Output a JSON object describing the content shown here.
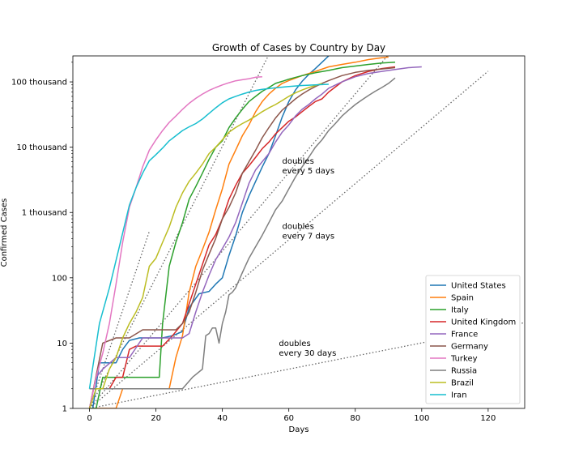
{
  "chart_data": {
    "type": "line",
    "title": "Growth of Cases by Country by Day",
    "xlabel": "Days",
    "ylabel": "Confirmed Cases",
    "xlim": [
      -5,
      131
    ],
    "ylim": [
      1,
      250000
    ],
    "yscale": "log",
    "grid": false,
    "legend_position": "lower-right",
    "x_ticks": [
      {
        "value": 0,
        "label": "0"
      },
      {
        "value": 20,
        "label": "20"
      },
      {
        "value": 40,
        "label": "40"
      },
      {
        "value": 60,
        "label": "60"
      },
      {
        "value": 80,
        "label": "80"
      },
      {
        "value": 100,
        "label": "100"
      },
      {
        "value": 120,
        "label": "120"
      }
    ],
    "y_ticks": [
      {
        "value": 1,
        "label": "1"
      },
      {
        "value": 10,
        "label": "10"
      },
      {
        "value": 100,
        "label": "100"
      },
      {
        "value": 1000,
        "label": "1 thousand"
      },
      {
        "value": 10000,
        "label": "10 thousand"
      },
      {
        "value": 100000,
        "label": "100 thousand"
      }
    ],
    "reference_lines": [
      {
        "days": 2,
        "x": [
          0,
          18
        ],
        "y": [
          1,
          512
        ]
      },
      {
        "days": 3,
        "x": [
          0,
          54
        ],
        "y": [
          1,
          262144
        ]
      },
      {
        "days": 5,
        "x": [
          0,
          90
        ],
        "y": [
          1,
          262144
        ]
      },
      {
        "days": 7,
        "x": [
          0,
          120
        ],
        "y": [
          1,
          146000
        ]
      },
      {
        "days": 30,
        "x": [
          0,
          131
        ],
        "y": [
          1,
          20.6
        ]
      }
    ],
    "annotations": [
      {
        "lines": [
          "doubles",
          "every 5 days"
        ],
        "x": 58,
        "y": 5000
      },
      {
        "lines": [
          "doubles",
          "every 7 days"
        ],
        "x": 58,
        "y": 500
      },
      {
        "lines": [
          "doubles",
          "every 30 days"
        ],
        "x": 57,
        "y": 8
      }
    ],
    "series": [
      {
        "name": "United States",
        "color": "#1f77b4",
        "x": [
          1,
          3,
          5,
          8,
          10,
          12,
          15,
          18,
          22,
          25,
          28,
          30,
          33,
          36,
          38,
          40,
          42,
          44,
          46,
          48,
          50,
          52,
          54,
          56,
          58,
          60,
          62,
          64,
          66,
          68,
          70,
          72
        ],
        "y": [
          1,
          5,
          5,
          5,
          8,
          11,
          12,
          12,
          12,
          13,
          15,
          35,
          57,
          62,
          80,
          100,
          220,
          440,
          1000,
          1800,
          3000,
          5000,
          8000,
          15000,
          29000,
          50000,
          75000,
          102000,
          130000,
          160000,
          200000,
          250000
        ]
      },
      {
        "name": "Spain",
        "color": "#ff7f0e",
        "x": [
          0,
          8,
          10,
          12,
          20,
          24,
          26,
          28,
          30,
          32,
          34,
          36,
          38,
          40,
          42,
          44,
          46,
          48,
          50,
          52,
          54,
          56,
          58,
          60,
          64,
          68,
          72,
          76,
          80,
          84,
          88,
          90
        ],
        "y": [
          1,
          1,
          2,
          2,
          2,
          2,
          6,
          13,
          60,
          150,
          270,
          500,
          1100,
          2300,
          5500,
          9000,
          15000,
          22000,
          35000,
          50000,
          65000,
          80000,
          95000,
          105000,
          125000,
          145000,
          170000,
          185000,
          200000,
          220000,
          235000,
          240000
        ]
      },
      {
        "name": "Italy",
        "color": "#2ca02c",
        "x": [
          0,
          2,
          4,
          6,
          8,
          10,
          14,
          18,
          21,
          22,
          24,
          26,
          28,
          30,
          32,
          34,
          36,
          38,
          40,
          42,
          44,
          46,
          48,
          50,
          52,
          54,
          56,
          58,
          60,
          64,
          68,
          72,
          76,
          80,
          84,
          88,
          92
        ],
        "y": [
          1,
          1,
          3,
          3,
          3,
          3,
          3,
          3,
          3,
          20,
          150,
          350,
          700,
          1600,
          2500,
          4000,
          6500,
          10000,
          12500,
          20000,
          28000,
          38000,
          50000,
          60000,
          72000,
          82000,
          95000,
          102000,
          110000,
          125000,
          138000,
          150000,
          165000,
          175000,
          185000,
          195000,
          200000
        ]
      },
      {
        "name": "United Kingdom",
        "color": "#d62728",
        "x": [
          0,
          6,
          8,
          10,
          12,
          14,
          18,
          22,
          25,
          28,
          30,
          32,
          34,
          36,
          38,
          40,
          42,
          44,
          46,
          48,
          50,
          52,
          54,
          56,
          58,
          60,
          62,
          64,
          66,
          68,
          70,
          72,
          76,
          80,
          84,
          88,
          92
        ],
        "y": [
          2,
          2,
          3,
          3,
          8,
          9,
          9,
          9,
          13,
          20,
          40,
          80,
          160,
          320,
          460,
          800,
          1600,
          2600,
          4000,
          5200,
          7000,
          9500,
          12000,
          16000,
          20000,
          25000,
          29000,
          35000,
          42000,
          50000,
          55000,
          70000,
          100000,
          125000,
          145000,
          160000,
          170000
        ]
      },
      {
        "name": "France",
        "color": "#9467bd",
        "x": [
          0,
          2,
          4,
          8,
          12,
          16,
          20,
          24,
          28,
          30,
          32,
          34,
          36,
          38,
          40,
          42,
          44,
          46,
          48,
          50,
          52,
          54,
          56,
          58,
          60,
          62,
          64,
          66,
          68,
          70,
          72,
          76,
          80,
          84,
          88,
          92,
          96,
          100
        ],
        "y": [
          1,
          3,
          4,
          6,
          6,
          12,
          12,
          12,
          12,
          14,
          30,
          60,
          110,
          190,
          280,
          420,
          700,
          1400,
          2800,
          4500,
          6000,
          8000,
          12000,
          17000,
          22000,
          30000,
          38000,
          45000,
          55000,
          65000,
          80000,
          100000,
          120000,
          135000,
          145000,
          155000,
          165000,
          170000
        ]
      },
      {
        "name": "Germany",
        "color": "#8c564b",
        "x": [
          0,
          4,
          8,
          12,
          16,
          20,
          24,
          26,
          28,
          30,
          32,
          34,
          36,
          38,
          40,
          42,
          44,
          46,
          48,
          50,
          52,
          54,
          56,
          58,
          60,
          62,
          64,
          66,
          68,
          70,
          72,
          76,
          80,
          84,
          88,
          92
        ],
        "y": [
          1,
          10,
          12,
          12,
          16,
          16,
          16,
          16,
          20,
          30,
          60,
          130,
          230,
          400,
          800,
          1200,
          2000,
          4000,
          6000,
          9000,
          14000,
          20000,
          28000,
          37000,
          45000,
          55000,
          65000,
          75000,
          85000,
          95000,
          105000,
          125000,
          140000,
          150000,
          158000,
          165000
        ]
      },
      {
        "name": "Turkey",
        "color": "#e377c2",
        "x": [
          0,
          2,
          4,
          6,
          8,
          10,
          12,
          14,
          16,
          18,
          20,
          22,
          24,
          26,
          28,
          30,
          32,
          34,
          36,
          38,
          40,
          42,
          44,
          46,
          48,
          50,
          52
        ],
        "y": [
          1,
          3,
          7,
          20,
          80,
          350,
          1200,
          2400,
          5000,
          9000,
          13000,
          18000,
          24000,
          30000,
          38000,
          47000,
          56000,
          65000,
          74000,
          82000,
          90000,
          97000,
          104000,
          108000,
          112000,
          118000,
          120000
        ]
      },
      {
        "name": "Russia",
        "color": "#7f7f7f",
        "x": [
          0,
          10,
          20,
          28,
          31,
          34,
          35,
          36,
          37,
          38,
          39,
          40,
          41,
          42,
          43,
          44,
          46,
          48,
          50,
          52,
          54,
          56,
          58,
          60,
          62,
          64,
          66,
          68,
          70,
          72,
          74,
          76,
          78,
          80,
          82,
          84,
          86,
          88,
          90,
          92
        ],
        "y": [
          2,
          2,
          2,
          2,
          3,
          4,
          13,
          14,
          17,
          17,
          10,
          20,
          30,
          55,
          60,
          70,
          120,
          200,
          300,
          450,
          700,
          1100,
          1500,
          2300,
          3500,
          5000,
          7000,
          10000,
          13000,
          18000,
          23000,
          30000,
          37000,
          45000,
          53000,
          62000,
          72000,
          82000,
          95000,
          115000
        ]
      },
      {
        "name": "Brazil",
        "color": "#bcbd22",
        "x": [
          0,
          2,
          4,
          6,
          8,
          10,
          12,
          14,
          16,
          18,
          20,
          22,
          24,
          26,
          28,
          30,
          32,
          34,
          36,
          38,
          40,
          42,
          44,
          46,
          48,
          50,
          52,
          54,
          56,
          58,
          60,
          62,
          64,
          66,
          68,
          70
        ],
        "y": [
          1,
          2,
          2,
          4,
          6,
          12,
          20,
          30,
          50,
          150,
          200,
          350,
          600,
          1200,
          2000,
          3000,
          4000,
          5500,
          8000,
          10000,
          13000,
          17000,
          20000,
          23000,
          26000,
          30000,
          35000,
          40000,
          45000,
          52000,
          60000,
          68000,
          75000,
          82000,
          88000,
          95000
        ]
      },
      {
        "name": "Iran",
        "color": "#17becf",
        "x": [
          0,
          3,
          6,
          9,
          12,
          14,
          16,
          18,
          20,
          22,
          24,
          26,
          28,
          30,
          32,
          34,
          36,
          38,
          40,
          42,
          44,
          46,
          48,
          50,
          52,
          56,
          60,
          64,
          68,
          72
        ],
        "y": [
          2,
          20,
          70,
          300,
          1300,
          2400,
          4000,
          6200,
          7700,
          9700,
          12500,
          15000,
          18000,
          20500,
          23000,
          27000,
          33000,
          40000,
          48000,
          55000,
          60000,
          65000,
          70000,
          74000,
          77000,
          81000,
          85000,
          88000,
          90000,
          92000
        ]
      }
    ]
  }
}
